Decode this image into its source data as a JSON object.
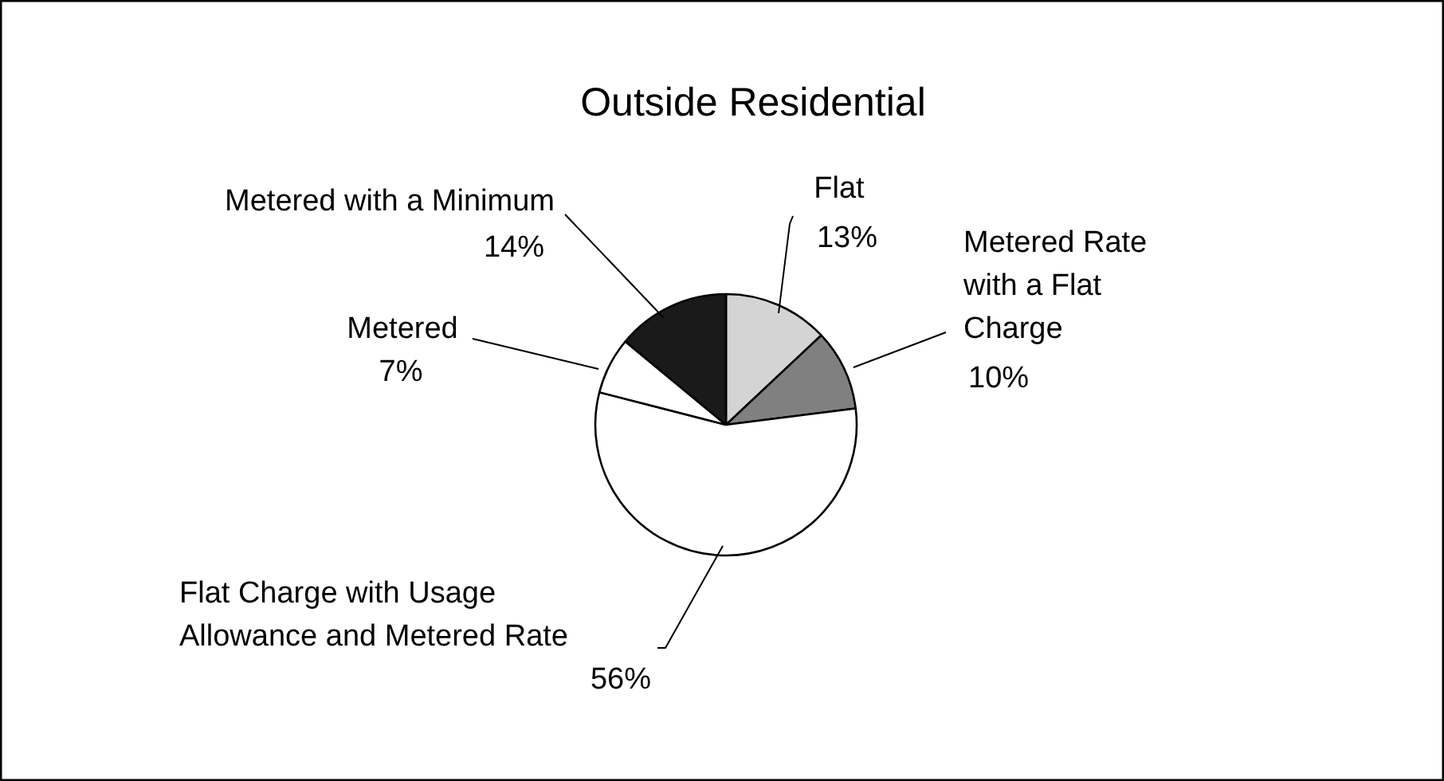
{
  "chart_data": {
    "type": "pie",
    "title": "Outside Residential",
    "categories": [
      "Flat",
      "Metered Rate with a Flat Charge",
      "Flat Charge with Usage Allowance and Metered Rate",
      "Metered",
      "Metered with a Minimum"
    ],
    "values": [
      13,
      10,
      56,
      7,
      14
    ],
    "colors": [
      "#d4d4d4",
      "#808080",
      "#ffffff",
      "#ffffff",
      "#1a1a1a"
    ],
    "value_labels": [
      "13%",
      "10%",
      "56%",
      "7%",
      "14%"
    ]
  }
}
